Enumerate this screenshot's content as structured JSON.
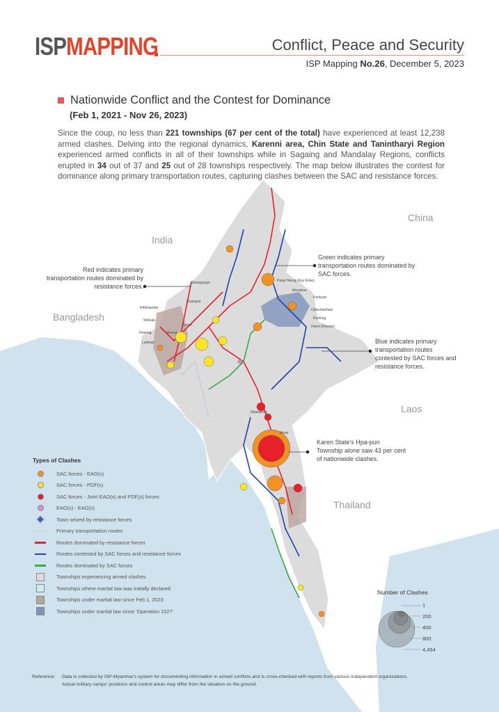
{
  "header": {
    "logo_isp": "ISP",
    "logo_mapping": "MAPPING",
    "title": "Conflict, Peace and Security",
    "issue_prefix": "ISP Mapping ",
    "issue_number": "No.26",
    "issue_date": ", December 5, 2023"
  },
  "section": {
    "title": "Nationwide Conflict and the Contest for Dominance",
    "date_range": "(Feb 1, 2021 - Nov 26, 2023)"
  },
  "intro": [
    {
      "text": "Since the coup, no less than ",
      "bold": false
    },
    {
      "text": "221 townships (67 per cent of the total)",
      "bold": true
    },
    {
      "text": " have experienced at least 12,238 armed clashes. Delving into the regional dynamics, ",
      "bold": false
    },
    {
      "text": "Karenni area, Chin State and Tanintharyi Region",
      "bold": true
    },
    {
      "text": " experienced armed conflicts in all of their townships while in Sagaing and Mandalay Regions, conflicts erupted in ",
      "bold": false
    },
    {
      "text": "34",
      "bold": true
    },
    {
      "text": " out of 37 and ",
      "bold": false
    },
    {
      "text": "25",
      "bold": true
    },
    {
      "text": " out of 28 townships respectively. The map below illustrates the contest for dominance along primary transportation routes, capturing clashes between the SAC and resistance forces.",
      "bold": false
    }
  ],
  "countries": {
    "india": "India",
    "china": "China",
    "bangladesh": "Bangladesh",
    "laos": "Laos",
    "thailand": "Thailand"
  },
  "annotations": {
    "red": "Red indicates primary transportation routes dominated by resistance forces.",
    "green": "Green indicates primary transportation routes dominated by SAC forces.",
    "blue": "Blue indicates primary transportation routes contested by SAC forces and resistance forces.",
    "hpapun": "Karen State's Hpa-pun Township alone saw 43 per cent of nationwide clashes."
  },
  "towns": [
    "Shwepyiaye",
    "Khampat",
    "Rihkhawdar",
    "Webula",
    "Hnaring",
    "Lailenpi",
    "Falam",
    "Rezua",
    "Pang Hseng (Kyu Koke)",
    "Monekoe",
    "Konkyan",
    "Chinshwehaw",
    "Kunlong",
    "Hseni (Hsenwi)",
    "Mese",
    "Hpasawng"
  ],
  "legend": {
    "title": "Types of Clashes",
    "items": [
      {
        "label": "SAC forces - EAO(s)",
        "symbol": "circle",
        "color": "#f39224"
      },
      {
        "label": "SAC forces - PDF(s)",
        "symbol": "circle",
        "color": "#fbe623"
      },
      {
        "label": "SAC forces - Joint EAO(s) and PDF(s) forces",
        "symbol": "circle",
        "color": "#e8202a"
      },
      {
        "label": "EAO(s) - EAO(s)",
        "symbol": "circle",
        "color": "#d98fd0"
      },
      {
        "label": "Town seized by resistance forces",
        "symbol": "diamond",
        "color": "#3a5fb0"
      },
      {
        "label": "Primary transportation routes",
        "symbol": "line",
        "color": "#c9cdd3"
      },
      {
        "label": "Routes dominated by resistance forces",
        "symbol": "line",
        "color": "#e8202a"
      },
      {
        "label": "Routes contested by SAC forces and resistance forces",
        "symbol": "line",
        "color": "#1f44a8"
      },
      {
        "label": "Routes dominated by SAC forces",
        "symbol": "line",
        "color": "#3aa845"
      },
      {
        "label": "Townships experiencing armed clashes",
        "symbol": "square",
        "color": "#dcdcdc"
      },
      {
        "label": "Townships where martial law was initially declared",
        "symbol": "square",
        "color": "#cdeaf7"
      },
      {
        "label": "Townships under martial law since Feb 1, 2023",
        "symbol": "square",
        "color": "#b9a49f"
      },
      {
        "label": "Townships under martial law since 'Operation 1027'",
        "symbol": "square",
        "color": "#7f93bd"
      }
    ]
  },
  "size_legend": {
    "title": "Number of Clashes",
    "values": [
      "1",
      "200",
      "400",
      "800",
      "4,454"
    ]
  },
  "reference": {
    "label": "Reference:",
    "line1": "Data is collected by ISP-Myanmar's system for documenting information in armed conflicts and is cross-checked with reports from various independent organizations.",
    "line2": "Actual military camps' positions and control areas may differ from the situation on the ground."
  },
  "colors": {
    "brand": "#e2452b",
    "sea": "#cfe2ee",
    "myanmar": "#dcdcdc",
    "resistance": "#e8202a",
    "contested": "#1f44a8",
    "sac": "#3aa845"
  }
}
